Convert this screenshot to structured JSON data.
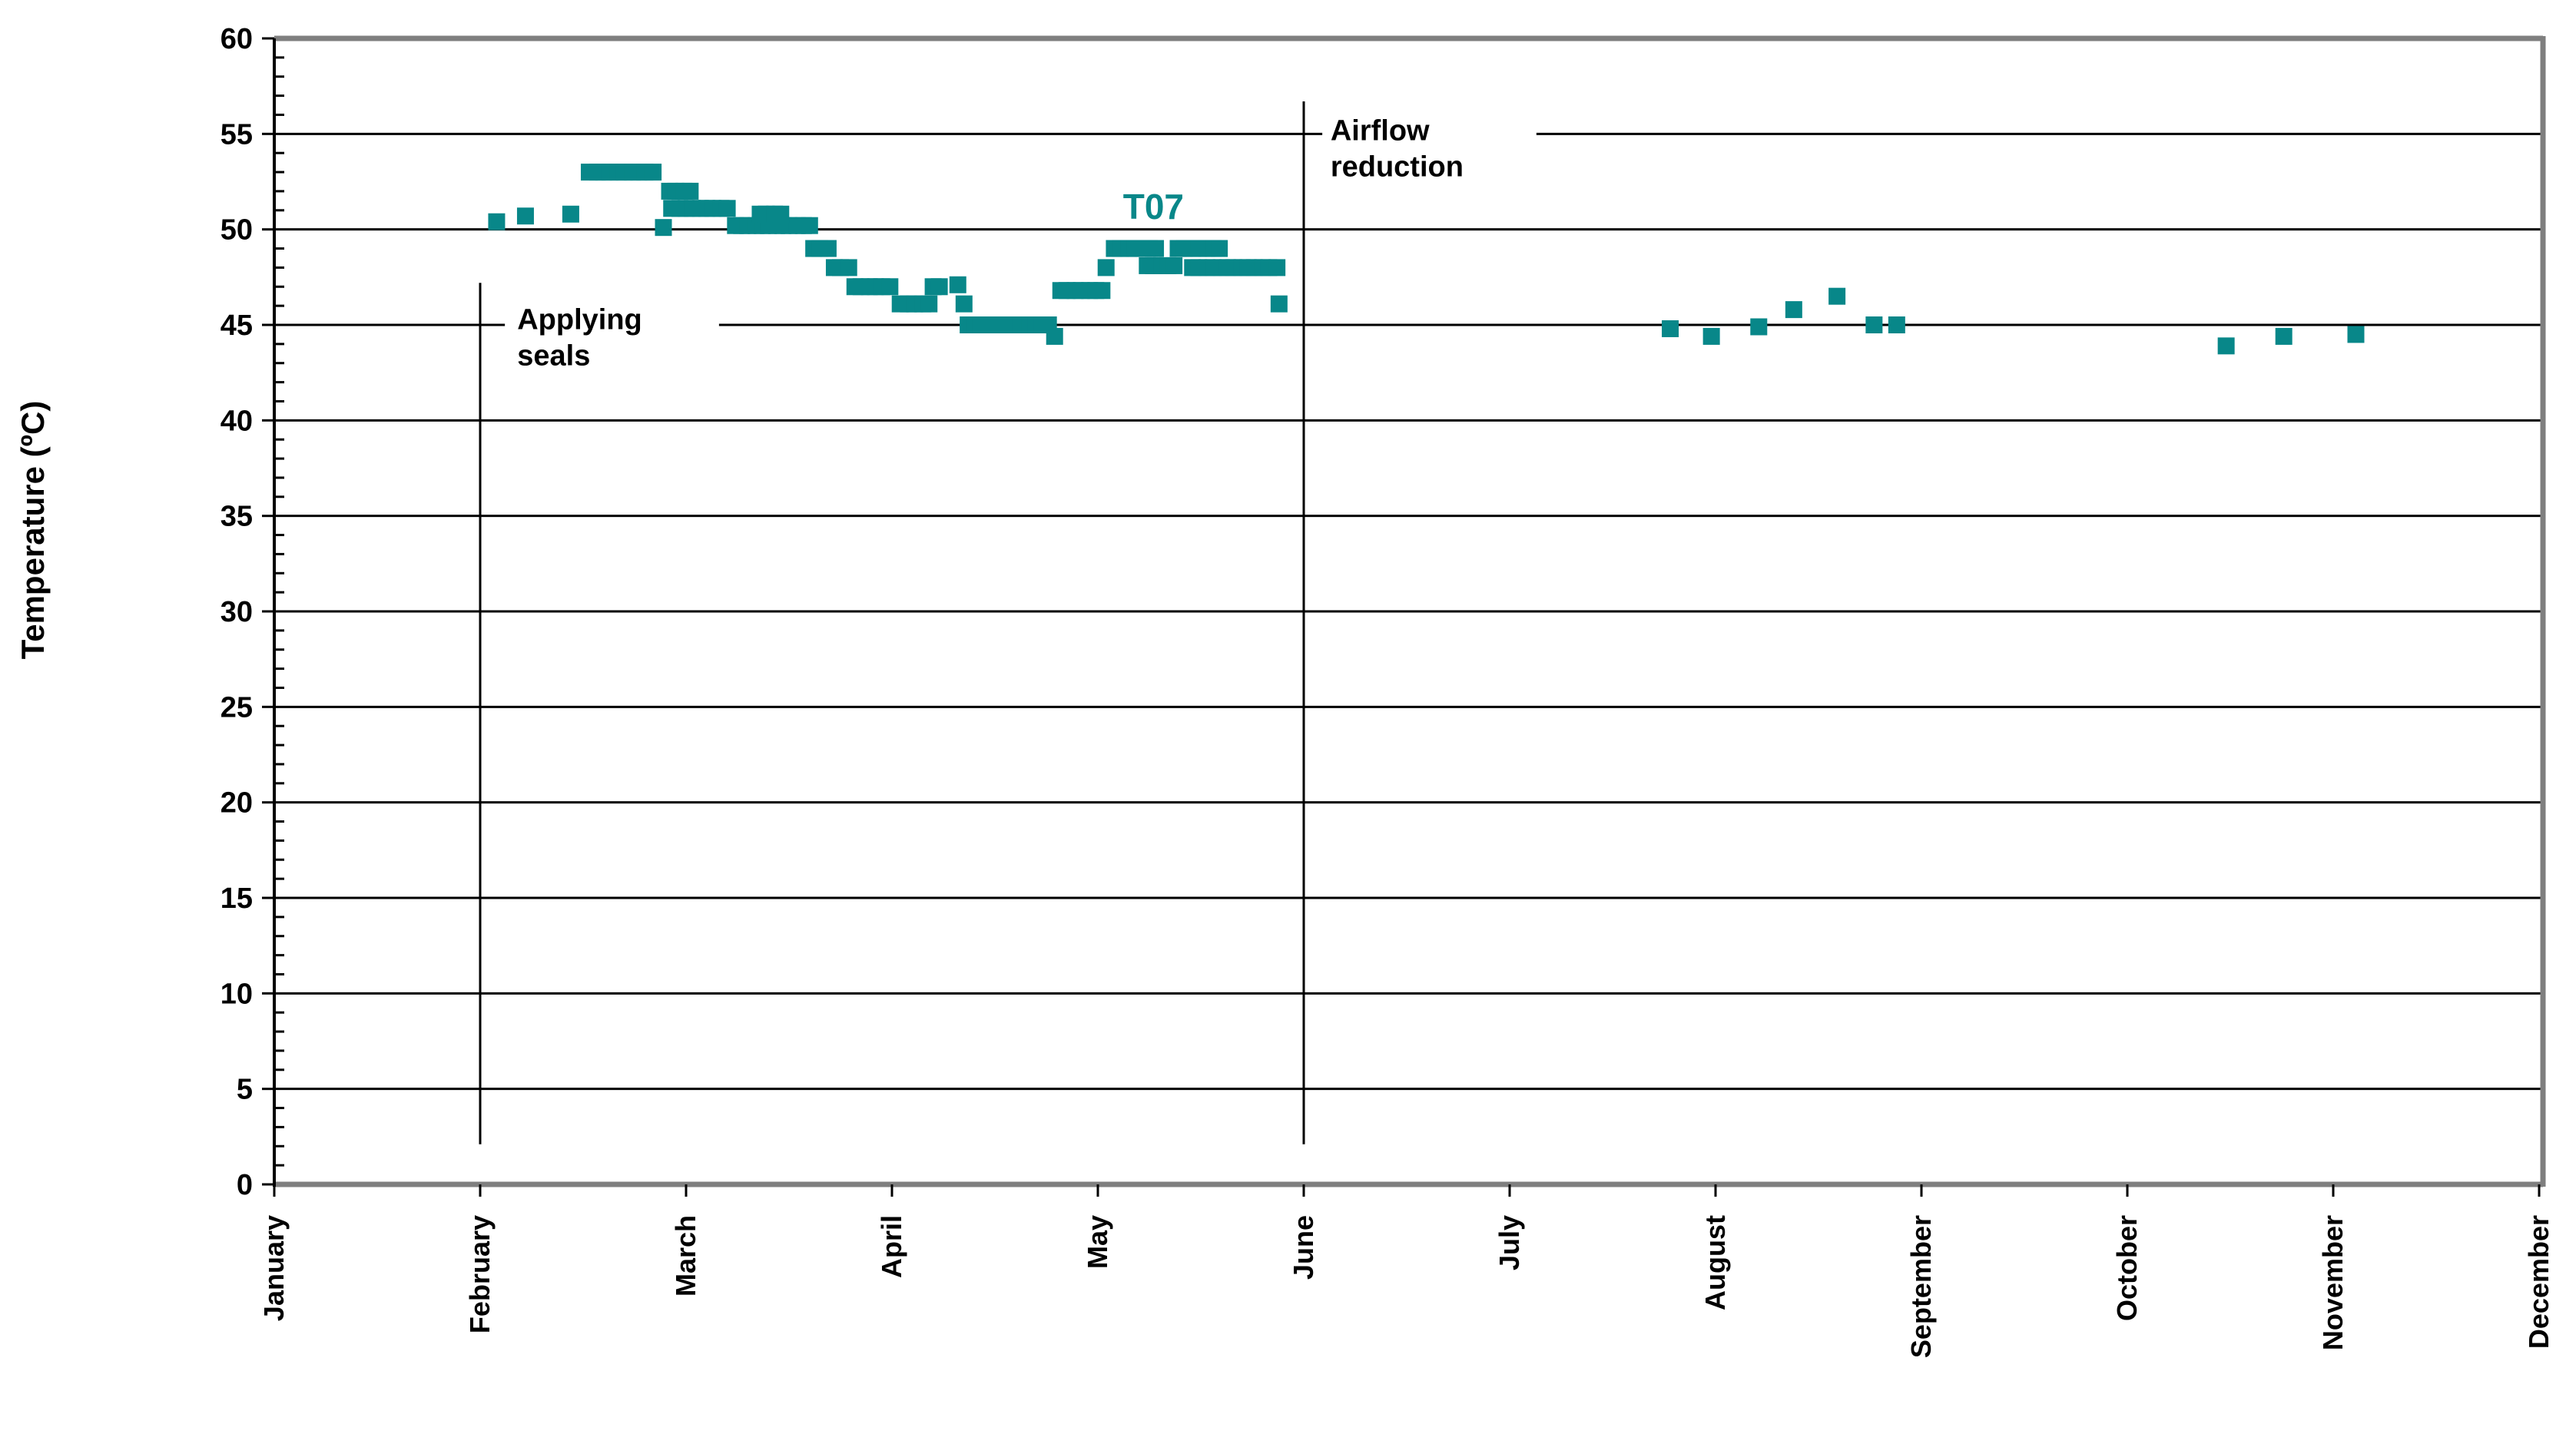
{
  "chart_data": {
    "type": "scatter",
    "title": "",
    "xlabel": "",
    "ylabel": "Temperature (ºC)",
    "grid": "horizontal-major",
    "legend_position": "none",
    "y_axis": {
      "min": 0,
      "max": 60,
      "major_step": 5,
      "minor_step": 1,
      "tick_labels": [
        "0",
        "5",
        "10",
        "15",
        "20",
        "25",
        "30",
        "35",
        "40",
        "45",
        "50",
        "55",
        "60"
      ]
    },
    "x_axis": {
      "categories": [
        "January",
        "February",
        "March",
        "April",
        "May",
        "June",
        "July",
        "August",
        "September",
        "October",
        "November",
        "December"
      ]
    },
    "colors": {
      "marker": "#088789",
      "gridline": "#000000",
      "border": "#7f7f7f",
      "text": "#000000",
      "background": "#ffffff"
    },
    "series_label": {
      "text": "T07",
      "month": 5.27,
      "temp": 51.2
    },
    "series": [
      {
        "name": "T07",
        "marker": "square",
        "marker_size": 22,
        "color": "#088789",
        "points": [
          [
            2.08,
            50.4
          ],
          [
            2.22,
            50.7
          ],
          [
            2.44,
            50.8
          ],
          [
            2.53,
            53
          ],
          [
            2.57,
            53
          ],
          [
            2.6,
            53
          ],
          [
            2.63,
            53
          ],
          [
            2.67,
            53
          ],
          [
            2.7,
            53
          ],
          [
            2.74,
            53
          ],
          [
            2.77,
            53
          ],
          [
            2.8,
            53
          ],
          [
            2.84,
            53
          ],
          [
            2.89,
            50.1
          ],
          [
            2.92,
            52
          ],
          [
            2.95,
            52
          ],
          [
            2.99,
            52
          ],
          [
            3.02,
            52
          ],
          [
            2.93,
            51.1
          ],
          [
            2.97,
            51.1
          ],
          [
            3.0,
            51.1
          ],
          [
            3.03,
            51.1
          ],
          [
            3.07,
            51.1
          ],
          [
            3.1,
            51.1
          ],
          [
            3.13,
            51.1
          ],
          [
            3.17,
            51.1
          ],
          [
            3.2,
            51.1
          ],
          [
            3.24,
            50.2
          ],
          [
            3.27,
            50.2
          ],
          [
            3.3,
            50.2
          ],
          [
            3.34,
            50.2
          ],
          [
            3.37,
            50.2
          ],
          [
            3.4,
            50.2
          ],
          [
            3.44,
            50.2
          ],
          [
            3.47,
            50.2
          ],
          [
            3.5,
            50.2
          ],
          [
            3.54,
            50.2
          ],
          [
            3.57,
            50.2
          ],
          [
            3.6,
            50.2
          ],
          [
            3.36,
            50.8
          ],
          [
            3.39,
            50.8
          ],
          [
            3.43,
            50.8
          ],
          [
            3.46,
            50.8
          ],
          [
            3.62,
            49
          ],
          [
            3.65,
            49
          ],
          [
            3.69,
            49
          ],
          [
            3.72,
            48
          ],
          [
            3.75,
            48
          ],
          [
            3.79,
            48
          ],
          [
            3.82,
            47
          ],
          [
            3.85,
            47
          ],
          [
            3.89,
            47
          ],
          [
            3.92,
            47
          ],
          [
            3.95,
            47
          ],
          [
            3.99,
            47
          ],
          [
            4.04,
            46.1
          ],
          [
            4.08,
            46.1
          ],
          [
            4.11,
            46.1
          ],
          [
            4.15,
            46.1
          ],
          [
            4.18,
            46.1
          ],
          [
            4.2,
            47
          ],
          [
            4.23,
            47
          ],
          [
            4.32,
            47.1
          ],
          [
            4.35,
            46.1
          ],
          [
            4.37,
            45
          ],
          [
            4.4,
            45
          ],
          [
            4.43,
            45
          ],
          [
            4.47,
            45
          ],
          [
            4.5,
            45
          ],
          [
            4.53,
            45
          ],
          [
            4.57,
            45
          ],
          [
            4.6,
            45
          ],
          [
            4.63,
            45
          ],
          [
            4.67,
            45
          ],
          [
            4.7,
            45
          ],
          [
            4.73,
            45
          ],
          [
            4.76,
            45
          ],
          [
            4.79,
            44.4
          ],
          [
            4.82,
            46.8
          ],
          [
            4.85,
            46.8
          ],
          [
            4.89,
            46.8
          ],
          [
            4.92,
            46.8
          ],
          [
            4.96,
            46.8
          ],
          [
            4.99,
            46.8
          ],
          [
            5.02,
            46.8
          ],
          [
            5.04,
            48
          ],
          [
            5.08,
            49
          ],
          [
            5.11,
            49
          ],
          [
            5.15,
            49
          ],
          [
            5.18,
            49
          ],
          [
            5.22,
            49
          ],
          [
            5.25,
            49
          ],
          [
            5.28,
            49
          ],
          [
            5.24,
            48.1
          ],
          [
            5.27,
            48.1
          ],
          [
            5.31,
            48.1
          ],
          [
            5.34,
            48.1
          ],
          [
            5.37,
            48.1
          ],
          [
            5.39,
            49
          ],
          [
            5.42,
            49
          ],
          [
            5.46,
            49
          ],
          [
            5.49,
            49
          ],
          [
            5.53,
            49
          ],
          [
            5.56,
            49
          ],
          [
            5.59,
            49
          ],
          [
            5.46,
            48
          ],
          [
            5.49,
            48
          ],
          [
            5.53,
            48
          ],
          [
            5.56,
            48
          ],
          [
            5.6,
            48
          ],
          [
            5.63,
            48
          ],
          [
            5.66,
            48
          ],
          [
            5.7,
            48
          ],
          [
            5.73,
            48
          ],
          [
            5.76,
            48
          ],
          [
            5.8,
            48
          ],
          [
            5.83,
            48
          ],
          [
            5.87,
            48
          ],
          [
            5.88,
            46.1
          ],
          [
            7.78,
            44.8
          ],
          [
            7.98,
            44.4
          ],
          [
            8.21,
            44.9
          ],
          [
            8.38,
            45.8
          ],
          [
            8.59,
            46.5
          ],
          [
            8.77,
            45
          ],
          [
            8.88,
            45
          ],
          [
            10.48,
            43.9
          ],
          [
            10.76,
            44.4
          ],
          [
            11.11,
            44.5
          ]
        ]
      }
    ],
    "annotations": [
      {
        "id": "applying-seals",
        "lines": [
          "Applying",
          "seals"
        ],
        "line_month": 2.0,
        "line_temp_top": 47.2,
        "line_temp_bottom": 2.1,
        "text_month": 2.18,
        "text_temp": 44.9,
        "gap_gridline_temp": 45,
        "gap_month_start": 2.12,
        "gap_month_end": 3.16
      },
      {
        "id": "airflow-reduction",
        "lines": [
          "Airflow",
          "reduction"
        ],
        "line_month": 6.0,
        "line_temp_top": 56.7,
        "line_temp_bottom": 2.1,
        "text_month": 6.13,
        "text_temp": 54.8,
        "gap_gridline_temp": 55,
        "gap_month_start": 6.09,
        "gap_month_end": 7.13
      }
    ]
  }
}
